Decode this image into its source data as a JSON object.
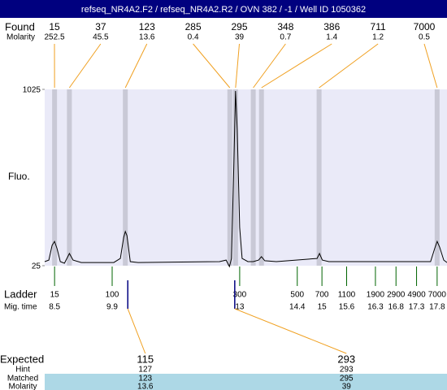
{
  "header": {
    "title": "refseq_NR4A2.F2 / refseq_NR4A2.R2 / OVN 382 / -1 / Well ID 1050362"
  },
  "chart_data": {
    "type": "electropherogram",
    "found_label": "Found",
    "molarity_label": "Molarity",
    "y_label": "Fluo.",
    "ylim": [
      25,
      1025
    ],
    "yticks": [
      25,
      1025
    ],
    "xlim": [
      8.26,
      18.04
    ],
    "plot_color": "#eaeaf8",
    "band_color": "#c9c9d6",
    "connector_color": "#f0a020",
    "found": {
      "sizes": [
        15,
        37,
        123,
        285,
        295,
        348,
        386,
        711,
        7000
      ],
      "molarity": [
        252.5,
        45.5,
        13.6,
        0.4,
        39,
        0.7,
        1.4,
        1.2,
        0.5
      ],
      "x": [
        8.5,
        8.86,
        10.22,
        12.76,
        12.9,
        13.33,
        13.53,
        14.93,
        17.8
      ]
    },
    "trace": {
      "color": "#000000",
      "x": [
        8.26,
        8.36,
        8.44,
        8.5,
        8.56,
        8.64,
        8.74,
        8.86,
        8.95,
        9.15,
        9.94,
        10.1,
        10.18,
        10.22,
        10.26,
        10.34,
        10.53,
        12.51,
        12.67,
        12.75,
        12.8,
        12.86,
        12.9,
        12.94,
        13.0,
        13.06,
        13.2,
        13.33,
        13.46,
        13.53,
        13.61,
        13.89,
        14.88,
        14.94,
        15.01,
        15.17,
        17.64,
        17.74,
        17.8,
        17.86,
        17.96,
        18.04
      ],
      "values": [
        48,
        57,
        140,
        163,
        122,
        48,
        39,
        94,
        57,
        43,
        43,
        66,
        186,
        219,
        196,
        48,
        43,
        48,
        57,
        20,
        66,
        610,
        1016,
        795,
        242,
        66,
        48,
        48,
        57,
        76,
        53,
        48,
        66,
        94,
        57,
        48,
        48,
        122,
        163,
        131,
        57,
        43
      ]
    },
    "ladder": {
      "label": "Ladder",
      "time_label": "Mig. time",
      "color": "#006400",
      "sizes": [
        15,
        100,
        300,
        500,
        700,
        1100,
        1900,
        2900,
        4900,
        7000
      ],
      "x": [
        8.5,
        9.9,
        13,
        14.4,
        15,
        15.6,
        16.3,
        16.8,
        17.3,
        17.8
      ]
    },
    "expected": {
      "label": "Expected",
      "hint_label": "Hint",
      "matched_label": "Matched",
      "molarity_label": "Molarity",
      "marker_color": "#000080",
      "row_color": "#add8e6",
      "sizes": [
        115,
        293
      ],
      "x": [
        10.28,
        12.88
      ],
      "hint": [
        127,
        293
      ],
      "matched": [
        123,
        295
      ],
      "molarity": [
        13.6,
        39
      ]
    }
  }
}
